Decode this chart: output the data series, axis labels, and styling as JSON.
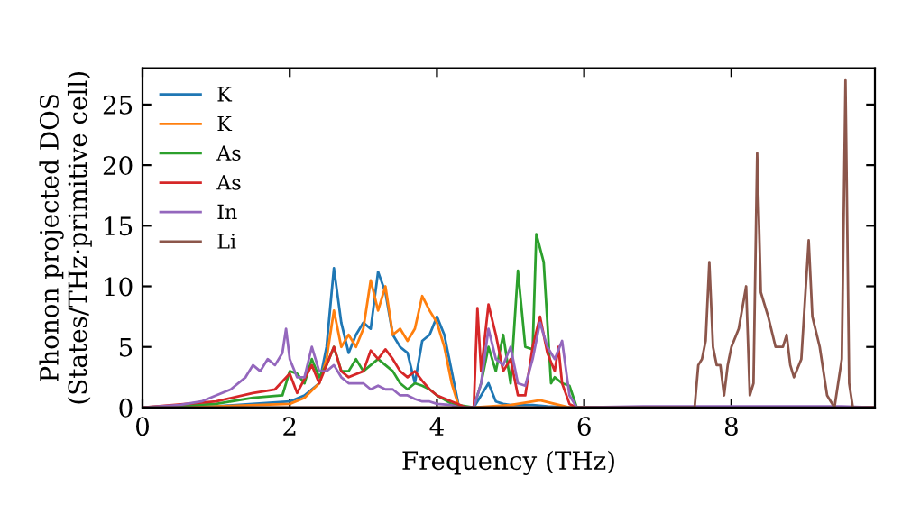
{
  "chart_data": {
    "type": "line",
    "xlabel": "Frequency (THz)",
    "ylabel": "Phonon projected DOS\n(States/THz·primitive cell)",
    "xlim": [
      0,
      9.95
    ],
    "ylim": [
      0,
      28
    ],
    "xticks": [
      0,
      2,
      4,
      6,
      8
    ],
    "yticks": [
      0,
      5,
      10,
      15,
      20,
      25
    ],
    "legend": "top left",
    "grid": false,
    "series": [
      {
        "name": "K",
        "color": "#1f77b4",
        "x": [
          0,
          1.0,
          2.0,
          2.2,
          2.4,
          2.5,
          2.6,
          2.7,
          2.8,
          2.9,
          3.0,
          3.1,
          3.2,
          3.3,
          3.4,
          3.5,
          3.6,
          3.7,
          3.8,
          3.9,
          4.0,
          4.1,
          4.2,
          4.3,
          4.5,
          4.6,
          4.7,
          4.8,
          4.9,
          5.0,
          5.3,
          5.5,
          5.8,
          9.95
        ],
        "values": [
          0,
          0.1,
          0.5,
          1,
          2,
          5,
          11.5,
          7,
          4.5,
          6,
          7,
          6.5,
          11.2,
          9.5,
          6,
          5,
          4.5,
          2,
          5.5,
          6,
          7.5,
          6,
          3,
          0,
          0,
          1,
          2,
          0.5,
          0.3,
          0.2,
          0.2,
          0.1,
          0,
          0
        ]
      },
      {
        "name": "K",
        "color": "#ff7f0e",
        "x": [
          0,
          1.0,
          2.0,
          2.2,
          2.4,
          2.5,
          2.6,
          2.7,
          2.8,
          2.9,
          3.0,
          3.1,
          3.2,
          3.3,
          3.4,
          3.5,
          3.6,
          3.7,
          3.8,
          3.9,
          4.0,
          4.1,
          4.2,
          4.3,
          4.5,
          5.0,
          5.4,
          5.6,
          5.8,
          9.95
        ],
        "values": [
          0,
          0.1,
          0.3,
          0.8,
          2,
          4,
          8,
          5,
          6,
          5,
          6.5,
          10.5,
          8,
          10,
          6,
          6.5,
          5.5,
          6.5,
          9.2,
          8,
          7,
          5,
          2,
          0,
          0,
          0.2,
          0.6,
          0.3,
          0,
          0
        ]
      },
      {
        "name": "As",
        "color": "#2ca02c",
        "x": [
          0,
          1.0,
          1.5,
          1.9,
          2.0,
          2.1,
          2.2,
          2.3,
          2.4,
          2.5,
          2.6,
          2.7,
          2.8,
          2.9,
          3.0,
          3.1,
          3.2,
          3.3,
          3.4,
          3.5,
          3.6,
          3.7,
          3.8,
          3.9,
          4.0,
          4.2,
          4.5,
          4.6,
          4.7,
          4.8,
          4.9,
          5.0,
          5.1,
          5.2,
          5.3,
          5.35,
          5.45,
          5.55,
          5.6,
          5.7,
          5.8,
          5.9,
          9.95
        ],
        "values": [
          0,
          0.3,
          0.8,
          1,
          3,
          2.8,
          2,
          4,
          2.5,
          3.5,
          5,
          3,
          3,
          4,
          3,
          3.5,
          4,
          3.5,
          3,
          2,
          1.5,
          2,
          1.8,
          1.5,
          1,
          0.3,
          0,
          2,
          5,
          3,
          6,
          2,
          11.3,
          5,
          4.8,
          14.3,
          12,
          2,
          2.5,
          2,
          1.8,
          0,
          0
        ]
      },
      {
        "name": "As",
        "color": "#d62728",
        "x": [
          0,
          1.0,
          1.5,
          1.8,
          2.0,
          2.1,
          2.3,
          2.4,
          2.5,
          2.6,
          2.7,
          2.8,
          3.0,
          3.1,
          3.2,
          3.3,
          3.4,
          3.5,
          3.6,
          3.7,
          3.8,
          3.9,
          4.0,
          4.2,
          4.4,
          4.5,
          4.55,
          4.6,
          4.7,
          4.8,
          4.9,
          5.0,
          5.1,
          5.2,
          5.3,
          5.4,
          5.5,
          5.6,
          5.65,
          5.7,
          5.8,
          5.9,
          9.95
        ],
        "values": [
          0,
          0.5,
          1.2,
          1.5,
          2.8,
          1.2,
          3.5,
          2,
          3.5,
          5,
          3,
          2.5,
          3,
          4.7,
          4,
          4.8,
          4,
          3,
          2.5,
          3,
          2.2,
          1.5,
          1,
          0.5,
          0,
          0,
          8.2,
          3,
          8.5,
          6,
          3,
          4,
          1,
          1,
          5,
          7.5,
          4.5,
          3,
          5,
          2,
          0.3,
          0,
          0
        ]
      },
      {
        "name": "In",
        "color": "#9467bd",
        "x": [
          0,
          0.5,
          0.8,
          1.0,
          1.2,
          1.4,
          1.5,
          1.6,
          1.7,
          1.8,
          1.9,
          1.95,
          2.0,
          2.1,
          2.2,
          2.3,
          2.4,
          2.5,
          2.6,
          2.7,
          2.8,
          2.9,
          3.0,
          3.1,
          3.2,
          3.3,
          3.4,
          3.5,
          3.6,
          3.7,
          3.8,
          3.9,
          4.0,
          4.2,
          4.3,
          4.5,
          4.6,
          4.7,
          4.8,
          4.9,
          5.0,
          5.1,
          5.2,
          5.3,
          5.4,
          5.5,
          5.6,
          5.7,
          5.8,
          5.9,
          6.8,
          9.5,
          9.95
        ],
        "values": [
          0,
          0.2,
          0.5,
          1,
          1.5,
          2.5,
          3.5,
          3,
          4,
          3.5,
          4.5,
          6.5,
          4,
          2.5,
          2.5,
          5,
          3,
          3,
          3.5,
          2.5,
          2,
          2,
          2,
          1.5,
          1.8,
          1.5,
          1.5,
          1,
          1,
          0.7,
          0.5,
          0.5,
          0.3,
          0.2,
          0,
          0,
          2,
          6.5,
          4,
          3.5,
          5,
          2,
          1.8,
          4,
          7,
          5,
          4,
          5.5,
          1,
          0,
          0.1,
          0.1,
          0
        ]
      },
      {
        "name": "Li",
        "color": "#8c564b",
        "x": [
          0,
          7.5,
          7.55,
          7.6,
          7.65,
          7.7,
          7.75,
          7.8,
          7.85,
          7.9,
          7.95,
          8.0,
          8.1,
          8.2,
          8.25,
          8.3,
          8.35,
          8.4,
          8.5,
          8.6,
          8.7,
          8.75,
          8.8,
          8.85,
          8.95,
          9.05,
          9.1,
          9.2,
          9.3,
          9.4,
          9.5,
          9.55,
          9.6,
          9.65,
          9.95
        ],
        "values": [
          0,
          0,
          3.5,
          4,
          5.5,
          12,
          5,
          3.5,
          3.5,
          1,
          3.5,
          5,
          6.5,
          10,
          1,
          2,
          21,
          9.5,
          7.5,
          5,
          5,
          6,
          3.5,
          2.5,
          4,
          13.8,
          7.5,
          5,
          1,
          0,
          4,
          27,
          2,
          0,
          0
        ]
      }
    ]
  }
}
